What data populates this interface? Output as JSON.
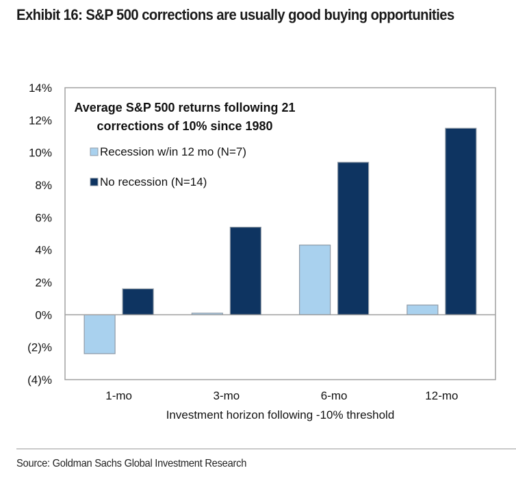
{
  "title": "Exhibit 16: S&P 500 corrections are usually good buying opportunities",
  "source": "Source: Goldman Sachs Global Investment Research",
  "chart_data": {
    "type": "bar",
    "title_lines": [
      "Average S&P 500 returns following 21",
      "corrections of 10% since 1980"
    ],
    "xlabel": "Investment horizon following -10% threshold",
    "ylabel": "",
    "categories": [
      "1-mo",
      "3-mo",
      "6-mo",
      "12-mo"
    ],
    "series": [
      {
        "name": "Recession w/in 12 mo (N=7)",
        "color": "#a9d1ee",
        "values": [
          -2.4,
          0.1,
          4.3,
          0.6
        ]
      },
      {
        "name": "No recession (N=14)",
        "color": "#0e3461",
        "values": [
          1.6,
          5.4,
          9.4,
          11.5
        ]
      }
    ],
    "ylim": [
      -4,
      14
    ],
    "yticks": [
      14,
      12,
      10,
      8,
      6,
      4,
      2,
      0,
      -2,
      -4
    ],
    "ytick_labels": [
      "14%",
      "12%",
      "10%",
      "8%",
      "6%",
      "4%",
      "2%",
      "0%",
      "(2)%",
      "(4)%"
    ],
    "grid": false,
    "legend_position": "top-left"
  }
}
